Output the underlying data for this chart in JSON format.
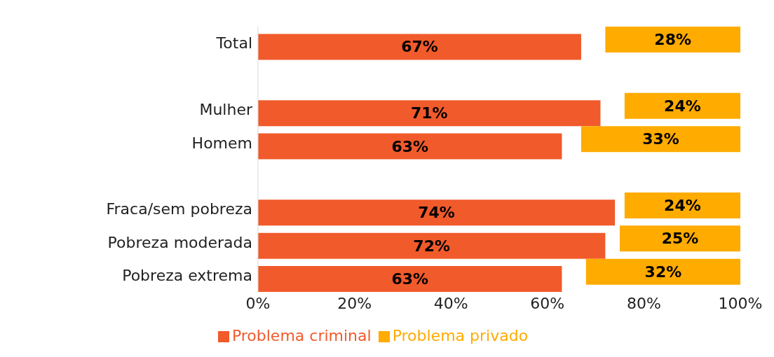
{
  "chart_data": {
    "type": "bar",
    "orientation": "horizontal",
    "categories": [
      "Total",
      null,
      "Mulher",
      "Homem",
      null,
      "Fraca/sem pobreza",
      "Pobreza moderada",
      "Pobreza extrema"
    ],
    "series": [
      {
        "name": "Problema criminal",
        "color": "#f15a2b",
        "values": [
          67,
          null,
          71,
          63,
          null,
          74,
          72,
          63
        ],
        "value_labels": [
          "67%",
          null,
          "71%",
          "63%",
          null,
          "74%",
          "72%",
          "63%"
        ]
      },
      {
        "name": "Problema privado",
        "color": "#ffab00",
        "base": [
          72,
          null,
          76,
          67,
          null,
          76,
          75,
          68
        ],
        "values": [
          28,
          null,
          24,
          33,
          null,
          24,
          25,
          32
        ],
        "value_labels": [
          "28%",
          null,
          "24%",
          "33%",
          null,
          "24%",
          "25%",
          "32%"
        ]
      }
    ],
    "xlim": [
      0,
      100
    ],
    "xticks": [
      {
        "value": 0,
        "label": "0%"
      },
      {
        "value": 20,
        "label": "20%"
      },
      {
        "value": 40,
        "label": "40%"
      },
      {
        "value": 60,
        "label": "60%"
      },
      {
        "value": 80,
        "label": "80%"
      },
      {
        "value": 100,
        "label": "100%"
      }
    ],
    "grid": false,
    "legend": "bottom"
  }
}
